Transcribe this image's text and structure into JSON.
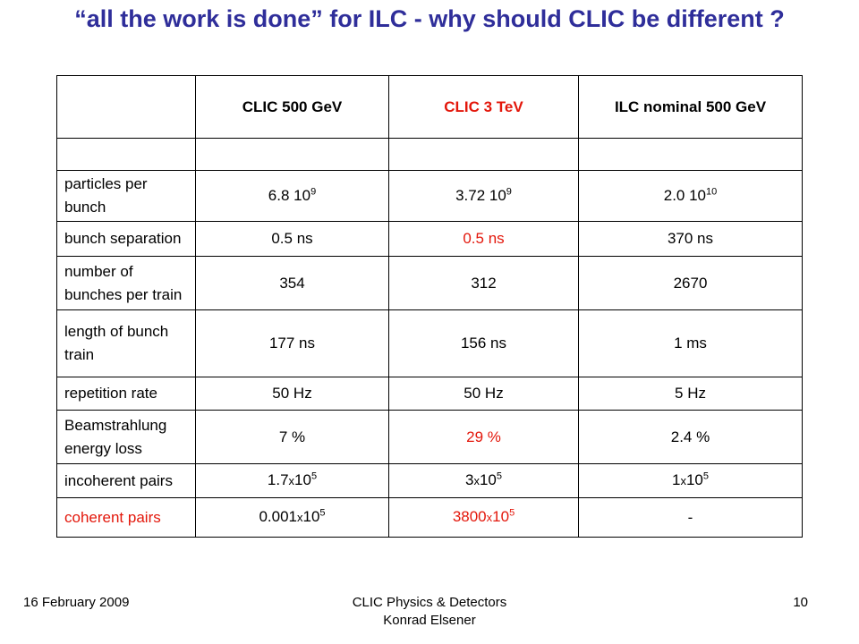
{
  "slide": {
    "title": "“all the work is done”  for ILC - why should CLIC be different ?"
  },
  "table": {
    "headers": [
      "",
      "CLIC 500 GeV",
      "CLIC 3 TeV",
      "ILC nominal 500 GeV"
    ],
    "header_colors": [
      "#000000",
      "#000000",
      "#e3170b",
      "#000000"
    ],
    "rows": [
      {
        "label": "particles per bunch",
        "values": [
          "6.8 10",
          "3.72 10",
          "2.0 10"
        ],
        "exponents": [
          "9",
          "9",
          "10"
        ]
      },
      {
        "label": "bunch separation",
        "values": [
          "0.5 ns",
          "0.5 ns",
          "370 ns"
        ]
      },
      {
        "label": "number of bunches per train",
        "values": [
          "354",
          "312",
          "2670"
        ]
      },
      {
        "label": "length of bunch train",
        "values": [
          "177 ns",
          "156 ns",
          "1 ms"
        ]
      },
      {
        "label": "repetition rate",
        "values": [
          "50 Hz",
          "50 Hz",
          "5 Hz"
        ]
      },
      {
        "label": "Beamstrahlung energy loss",
        "values": [
          "7 %",
          "29 %",
          "2.4 %"
        ]
      },
      {
        "label": "incoherent pairs",
        "mantissas": [
          "1.7",
          "3",
          "1"
        ],
        "times": "x",
        "base": "10",
        "exponent": "5"
      },
      {
        "label": "coherent pairs",
        "mantissas": [
          "0.001",
          "3800",
          ""
        ],
        "times": "x",
        "base": "10",
        "exponent": "5",
        "last_value": "-"
      }
    ],
    "highlight_color": "#e3170b"
  },
  "footer": {
    "date": "16 February 2009",
    "event_line1": "CLIC Physics & Detectors",
    "event_line2": "Konrad Elsener",
    "page_number": "10"
  }
}
